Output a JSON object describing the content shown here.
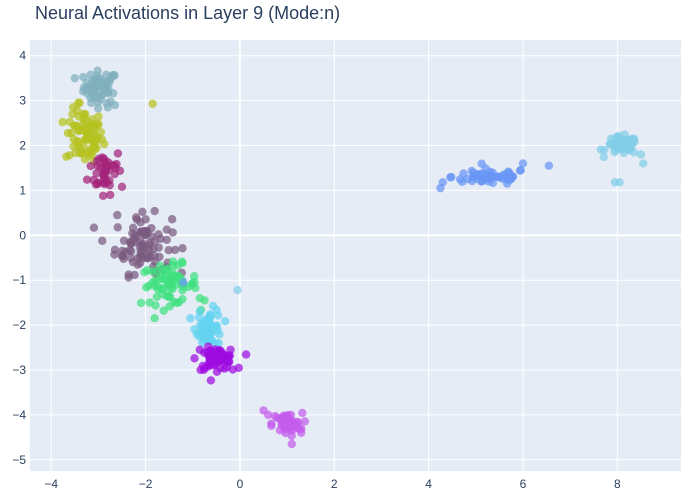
{
  "chart_data": {
    "type": "scatter",
    "title": "Neural Activations in Layer 9 (Mode:n)",
    "xlabel": "",
    "ylabel": "",
    "xlim": [
      -4.45,
      9.35
    ],
    "ylim": [
      -5.25,
      4.35
    ],
    "xticks": [
      -4,
      -2,
      0,
      2,
      4,
      6,
      8
    ],
    "yticks": [
      -5,
      -4,
      -3,
      -2,
      -1,
      0,
      1,
      2,
      3,
      4
    ],
    "grid": true,
    "legend": "none",
    "plot_bg": "#E5ECF6",
    "grid_color": "#ffffff",
    "clusters": [
      {
        "color": "#7FB0BC",
        "center": [
          -2.95,
          3.3
        ],
        "spread": [
          0.18,
          0.18
        ],
        "count": 60,
        "extra": [
          [
            -3.5,
            3.5
          ],
          [
            -3.15,
            2.95
          ],
          [
            -2.8,
            2.85
          ],
          [
            -2.65,
            2.9
          ]
        ]
      },
      {
        "color": "#B5C21F",
        "center": [
          -3.3,
          2.2
        ],
        "spread": [
          0.2,
          0.3
        ],
        "count": 75,
        "extra": [
          [
            -1.85,
            2.93
          ],
          [
            -3.55,
            2.7
          ],
          [
            -3.4,
            2.95
          ],
          [
            -3.1,
            1.65
          ]
        ]
      },
      {
        "color": "#A3247A",
        "center": [
          -2.85,
          1.45
        ],
        "spread": [
          0.18,
          0.25
        ],
        "count": 40,
        "extra": [
          [
            -2.5,
            1.08
          ],
          [
            -2.75,
            0.9
          ],
          [
            -2.9,
            0.88
          ]
        ]
      },
      {
        "color": "#7A5A7F",
        "center": [
          -2.05,
          -0.2
        ],
        "spread": [
          0.3,
          0.32
        ],
        "count": 85,
        "extra": [
          [
            -2.6,
            0.45
          ],
          [
            -2.2,
            0.4
          ],
          [
            -1.8,
            -0.8
          ],
          [
            -1.65,
            -0.75
          ]
        ]
      },
      {
        "color": "#3EE07E",
        "center": [
          -1.5,
          -1.1
        ],
        "spread": [
          0.3,
          0.22
        ],
        "count": 70,
        "extra": [
          [
            -0.85,
            -1.4
          ],
          [
            -0.75,
            -1.45
          ],
          [
            -1.85,
            -1.05
          ]
        ]
      },
      {
        "color": "#6A96F5",
        "center": [
          5.3,
          1.3
        ],
        "spread": [
          0.4,
          0.09
        ],
        "count": 60,
        "extra": [
          [
            4.25,
            1.05
          ],
          [
            4.3,
            1.18
          ],
          [
            6.0,
            1.6
          ],
          [
            6.55,
            1.55
          ],
          [
            5.95,
            1.45
          ],
          [
            -1.2,
            -1.05
          ]
        ]
      },
      {
        "color": "#82CDE8",
        "center": [
          8.1,
          2.0
        ],
        "spread": [
          0.17,
          0.1
        ],
        "count": 55,
        "extra": [
          [
            8.55,
            1.6
          ],
          [
            7.95,
            1.18
          ],
          [
            8.05,
            1.18
          ],
          [
            8.5,
            1.8
          ],
          [
            -0.05,
            -1.22
          ]
        ]
      },
      {
        "color": "#62D3F0",
        "center": [
          -0.65,
          -2.05
        ],
        "spread": [
          0.14,
          0.2
        ],
        "count": 50,
        "extra": [
          [
            -0.85,
            -1.7
          ],
          [
            -0.45,
            -2.4
          ]
        ]
      },
      {
        "color": "#9E0BE0",
        "center": [
          -0.5,
          -2.75
        ],
        "spread": [
          0.2,
          0.12
        ],
        "count": 60,
        "extra": [
          [
            -0.15,
            -2.99
          ],
          [
            -0.85,
            -2.55
          ],
          [
            -0.2,
            -2.55
          ]
        ]
      },
      {
        "color": "#C45BEB",
        "center": [
          1.0,
          -4.2
        ],
        "spread": [
          0.16,
          0.12
        ],
        "count": 45,
        "extra": [
          [
            0.5,
            -3.9
          ],
          [
            0.6,
            -4.0
          ],
          [
            1.1,
            -4.65
          ],
          [
            1.3,
            -4.4
          ]
        ]
      }
    ]
  }
}
